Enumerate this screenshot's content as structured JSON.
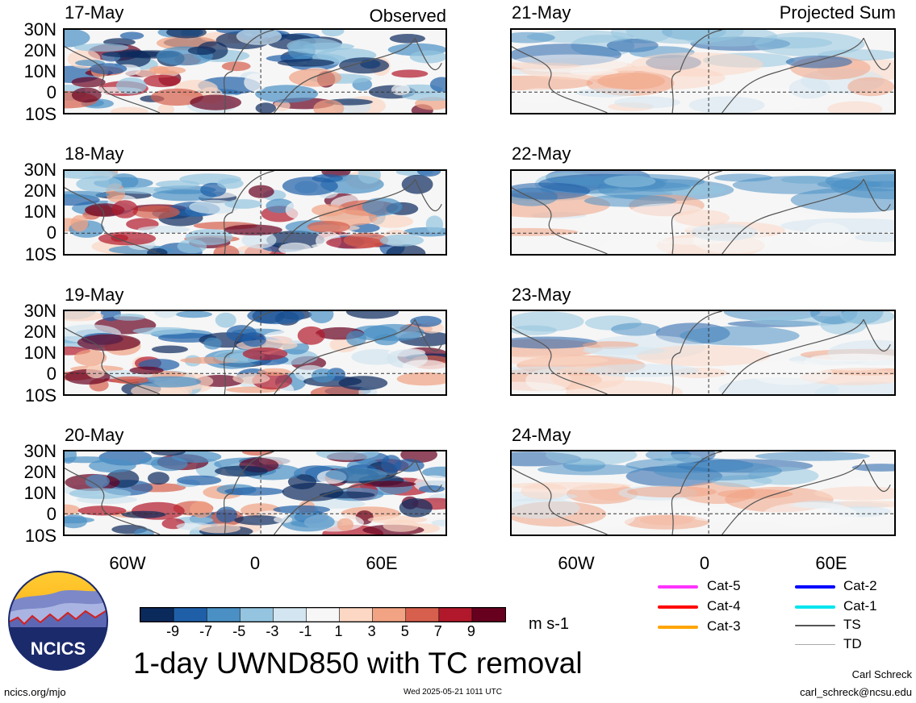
{
  "panels_left": [
    {
      "date": "17-May",
      "label": "Observed"
    },
    {
      "date": "18-May",
      "label": ""
    },
    {
      "date": "19-May",
      "label": ""
    },
    {
      "date": "20-May",
      "label": ""
    }
  ],
  "panels_right": [
    {
      "date": "21-May",
      "label": "Projected Sum"
    },
    {
      "date": "22-May",
      "label": ""
    },
    {
      "date": "23-May",
      "label": ""
    },
    {
      "date": "24-May",
      "label": ""
    }
  ],
  "lat_labels": [
    "30N",
    "20N",
    "10N",
    "0",
    "10S"
  ],
  "lon_labels": [
    "60W",
    "0",
    "60E"
  ],
  "colorbar": {
    "colors": [
      "#0b2a5c",
      "#1f5fa8",
      "#4a90c4",
      "#94c4df",
      "#d3e5f0",
      "#f7f7f7",
      "#fbd7c4",
      "#f1a383",
      "#d6604d",
      "#b2182b",
      "#67001f"
    ],
    "ticks": [
      "-9",
      "-7",
      "-5",
      "-3",
      "-1",
      "1",
      "3",
      "5",
      "7",
      "9"
    ],
    "units": "m s-1"
  },
  "legend": [
    {
      "name": "Cat-5",
      "color": "#ff33ff"
    },
    {
      "name": "Cat-4",
      "color": "#ff0000"
    },
    {
      "name": "Cat-3",
      "color": "#ffa500"
    },
    {
      "name": "Cat-2",
      "color": "#0000ff"
    },
    {
      "name": "Cat-1",
      "color": "#00e5ee"
    },
    {
      "name": "TS",
      "color": "#555555"
    },
    {
      "name": "TD",
      "color": "#aaaaaa"
    }
  ],
  "title": "1-day UWND850 with TC removal",
  "logo_text": "NCICS",
  "footer": {
    "left": "ncics.org/mjo",
    "center": "Wed 2025-05-21 1011 UTC",
    "author": "Carl Schreck",
    "email": "carl_schreck@ncsu.edu"
  }
}
